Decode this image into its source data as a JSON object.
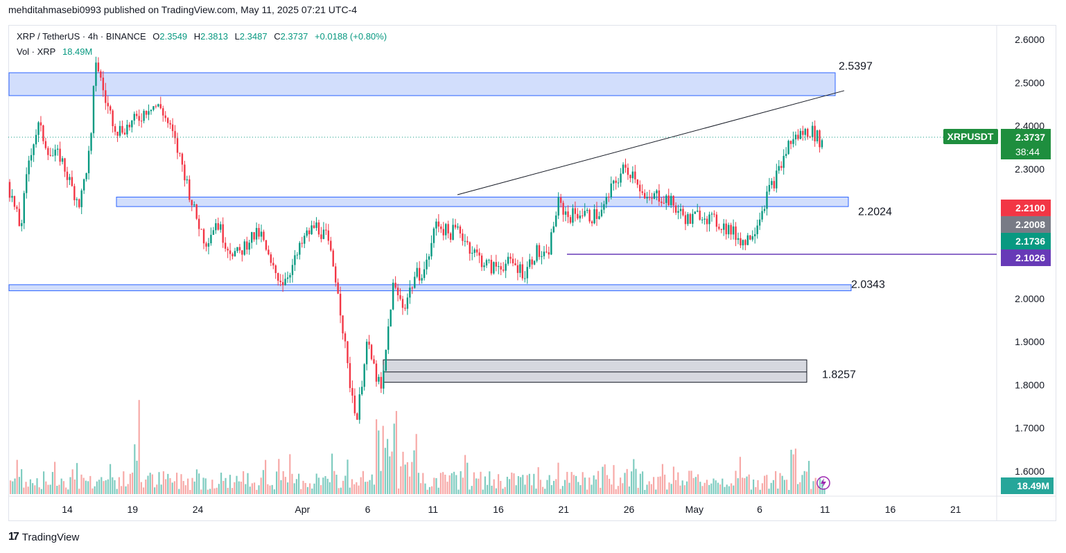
{
  "header": {
    "published": "mehditahmasebi0993 published on TradingView.com, May 11, 2025 07:21 UTC-4"
  },
  "symbol_info": {
    "symbol": "XRP / TetherUS · 4h · BINANCE",
    "open_label": "O",
    "open": "2.3549",
    "high_label": "H",
    "high": "2.3813",
    "low_label": "L",
    "low": "2.3487",
    "close_label": "C",
    "close": "2.3737",
    "change": "+0.0188 (+0.80%)"
  },
  "volume_info": {
    "label": "Vol · XRP",
    "value": "18.49M"
  },
  "footer": {
    "brand": "TradingView",
    "logo_glyph": "17"
  },
  "colors": {
    "up": "#089981",
    "down": "#f23645",
    "zone": "#d0dcfc",
    "zone_border": "#2962ff",
    "purple": "#673ab7"
  },
  "chart_data": {
    "type": "candlestick",
    "title": "XRP / TetherUS · 4h · BINANCE",
    "ylim": [
      1.55,
      2.64
    ],
    "y_ticks": [
      "2.6000",
      "2.5000",
      "2.4000",
      "2.3000",
      "2.2000",
      "2.1000",
      "2.0000",
      "1.9000",
      "1.8000",
      "1.7000",
      "1.6000"
    ],
    "x_ticks": [
      {
        "label": "14",
        "day": 1
      },
      {
        "label": "19",
        "day": 6
      },
      {
        "label": "24",
        "day": 11
      },
      {
        "label": "Apr",
        "day": 19
      },
      {
        "label": "6",
        "day": 24
      },
      {
        "label": "11",
        "day": 29
      },
      {
        "label": "16",
        "day": 34
      },
      {
        "label": "21",
        "day": 39
      },
      {
        "label": "26",
        "day": 44
      },
      {
        "label": "May",
        "day": 49
      },
      {
        "label": "6",
        "day": 54
      },
      {
        "label": "11",
        "day": 59
      },
      {
        "label": "16",
        "day": 64
      },
      {
        "label": "21",
        "day": 69
      }
    ],
    "series_close_points": [
      [
        0,
        2.27
      ],
      [
        0.6,
        2.16
      ],
      [
        1.0,
        2.33
      ],
      [
        1.4,
        2.4
      ],
      [
        2.0,
        2.33
      ],
      [
        2.4,
        2.33
      ],
      [
        2.9,
        2.26
      ],
      [
        3.3,
        2.22
      ],
      [
        3.8,
        2.36
      ],
      [
        4.0,
        2.56
      ],
      [
        4.5,
        2.45
      ],
      [
        5.0,
        2.39
      ],
      [
        5.5,
        2.4
      ],
      [
        6.0,
        2.42
      ],
      [
        6.5,
        2.45
      ],
      [
        7.0,
        2.44
      ],
      [
        7.5,
        2.38
      ],
      [
        8.0,
        2.3
      ],
      [
        8.5,
        2.2
      ],
      [
        9.0,
        2.13
      ],
      [
        9.5,
        2.18
      ],
      [
        10.0,
        2.12
      ],
      [
        10.5,
        2.1
      ],
      [
        11.0,
        2.14
      ],
      [
        11.5,
        2.15
      ],
      [
        12.0,
        2.07
      ],
      [
        12.5,
        2.04
      ],
      [
        13.0,
        2.08
      ],
      [
        13.5,
        2.14
      ],
      [
        14.0,
        2.17
      ],
      [
        14.5,
        2.14
      ],
      [
        15.0,
        2.03
      ],
      [
        15.5,
        1.82
      ],
      [
        15.9,
        1.72
      ],
      [
        16.3,
        1.9
      ],
      [
        16.7,
        1.83
      ],
      [
        17.0,
        1.78
      ],
      [
        17.5,
        2.03
      ],
      [
        18.0,
        1.98
      ],
      [
        18.5,
        2.05
      ],
      [
        19.0,
        2.07
      ],
      [
        19.5,
        2.18
      ],
      [
        20.0,
        2.15
      ],
      [
        20.5,
        2.16
      ],
      [
        21.0,
        2.12
      ],
      [
        21.5,
        2.09
      ],
      [
        22.0,
        2.07
      ],
      [
        22.5,
        2.08
      ],
      [
        23.0,
        2.08
      ],
      [
        23.5,
        2.06
      ],
      [
        24.0,
        2.11
      ],
      [
        24.5,
        2.09
      ],
      [
        25.0,
        2.22
      ],
      [
        25.5,
        2.19
      ],
      [
        26.0,
        2.2
      ],
      [
        26.5,
        2.19
      ],
      [
        27.0,
        2.2
      ],
      [
        27.5,
        2.26
      ],
      [
        28.0,
        2.3
      ],
      [
        28.5,
        2.29
      ],
      [
        29.0,
        2.22
      ],
      [
        29.5,
        2.24
      ],
      [
        30.0,
        2.23
      ],
      [
        30.5,
        2.2
      ],
      [
        31.0,
        2.18
      ],
      [
        31.5,
        2.2
      ],
      [
        32.0,
        2.18
      ],
      [
        32.5,
        2.17
      ],
      [
        33.0,
        2.15
      ],
      [
        33.5,
        2.13
      ],
      [
        34.0,
        2.17
      ],
      [
        34.5,
        2.24
      ],
      [
        35.0,
        2.29
      ],
      [
        35.5,
        2.36
      ],
      [
        36.0,
        2.38
      ],
      [
        36.5,
        2.39
      ],
      [
        37.0,
        2.36
      ]
    ],
    "rows": [
      {
        "label": "2.5397",
        "value": 2.5397
      },
      {
        "label": "2.2024",
        "value": 2.2024
      },
      {
        "label": "2.0343",
        "value": 2.0343
      },
      {
        "label": "1.8257",
        "value": 1.8257
      }
    ],
    "price_tags": {
      "symbol": "XRPUSDT",
      "last": "2.3737",
      "countdown": "38:44",
      "last_value": 2.3737,
      "red": "2.2100",
      "red_value": 2.21,
      "gray": "2.2008",
      "gray_value": 2.2008,
      "teal": "2.1736",
      "teal_value": 2.1736,
      "purple": "2.1026",
      "purple_value": 2.1026,
      "volume": "18.49M"
    }
  }
}
